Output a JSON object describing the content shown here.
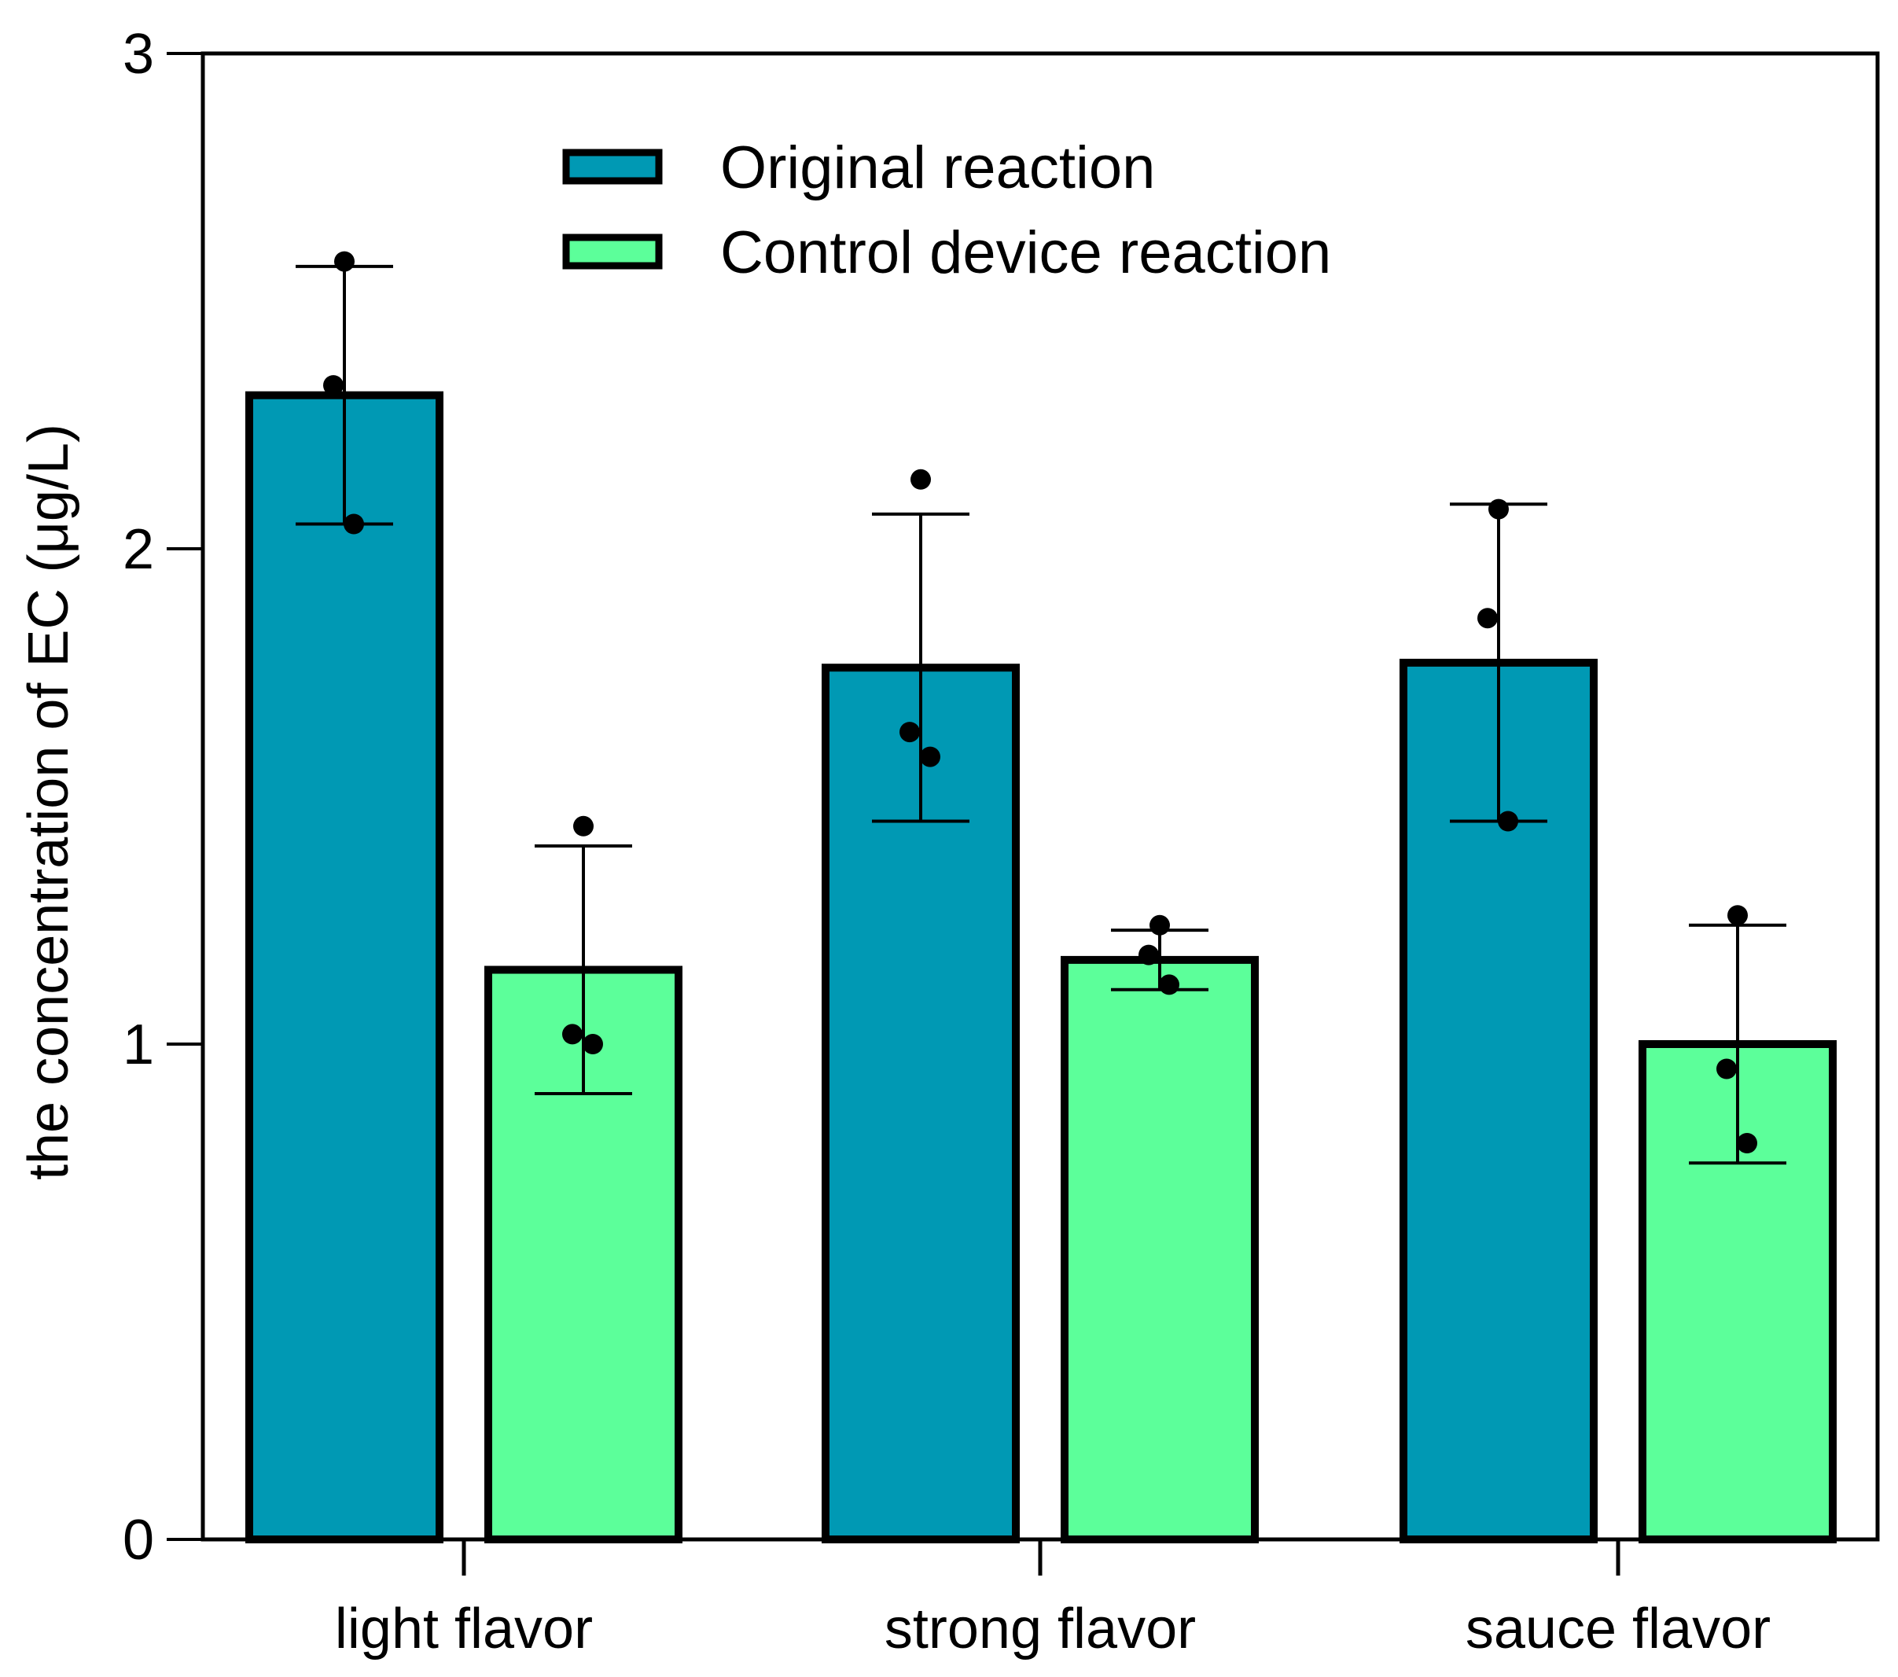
{
  "chart_data": {
    "type": "bar",
    "title": "",
    "xlabel": "",
    "ylabel": "the concentration of EC (μg/L)",
    "ylim": [
      0,
      3
    ],
    "yticks": [
      "0",
      "1",
      "2",
      "3"
    ],
    "ytick_values": [
      0,
      1,
      2,
      3
    ],
    "categories": [
      "light flavor",
      "strong flavor",
      "sauce flavor"
    ],
    "legend_position": "top-center",
    "series": [
      {
        "name": "Original reaction",
        "color": "#0099B4",
        "values": [
          2.31,
          1.76,
          1.77
        ],
        "error": [
          0.26,
          0.31,
          0.32
        ],
        "points": [
          [
            2.58,
            2.33,
            2.05
          ],
          [
            2.14,
            1.63,
            1.58
          ],
          [
            2.08,
            1.86,
            1.45
          ]
        ]
      },
      {
        "name": "Control device reaction",
        "color": "#5CFF9A",
        "values": [
          1.15,
          1.17,
          1.0
        ],
        "error": [
          0.25,
          0.06,
          0.24
        ],
        "points": [
          [
            1.44,
            1.02,
            1.0
          ],
          [
            1.24,
            1.18,
            1.12
          ],
          [
            1.26,
            0.95,
            0.8
          ]
        ]
      }
    ]
  }
}
